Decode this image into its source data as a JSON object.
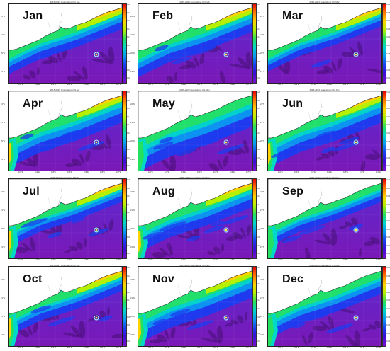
{
  "figure": {
    "panels": [
      {
        "month": "Jan",
        "title": "2015-2023 Guangdong Chl Jan"
      },
      {
        "month": "Feb",
        "title": "2015-2023 Guangdong Chl Feb"
      },
      {
        "month": "Mar",
        "title": "2015-2023 Guangdong Chl Mar"
      },
      {
        "month": "Apr",
        "title": "2015-2023 Guangdong Chl Apr"
      },
      {
        "month": "May",
        "title": "2015-2023 Guangdong Chl May"
      },
      {
        "month": "Jun",
        "title": "2015-2023 Guangdong Chl Jun"
      },
      {
        "month": "Jul",
        "title": "2015-2023 Guangdong Chl Jul"
      },
      {
        "month": "Aug",
        "title": "2015-2023 Guangdong Chl Aug"
      },
      {
        "month": "Sep",
        "title": "2015-2023 Guangdong Chl Sep"
      },
      {
        "month": "Oct",
        "title": "2015-2023 Guangdong Chl Oct"
      },
      {
        "month": "Nov",
        "title": "2015-2023 Guangdong Chl Nov"
      },
      {
        "month": "Dec",
        "title": "2015-2023 Guangdong Chl Dec"
      }
    ],
    "lat_labels": [
      "22°N",
      "21°N",
      "20°N",
      "19°N"
    ],
    "lon_labels": [
      "111°E",
      "112°E",
      "113°E",
      "114°E",
      "115°E",
      "116°E",
      "117°E"
    ],
    "colorbar_ticks": [
      "0.20",
      "0.18",
      "0.16",
      "0.14",
      "0.12",
      "0.10",
      "0.08",
      "0.06",
      "0.04",
      "0.02"
    ],
    "colormap": [
      "#e60000",
      "#ff6a00",
      "#ffd200",
      "#b6f000",
      "#23e060",
      "#00d8c8",
      "#0a9cf0",
      "#1b3cf0",
      "#3b10d8",
      "#7a10d0"
    ]
  }
}
